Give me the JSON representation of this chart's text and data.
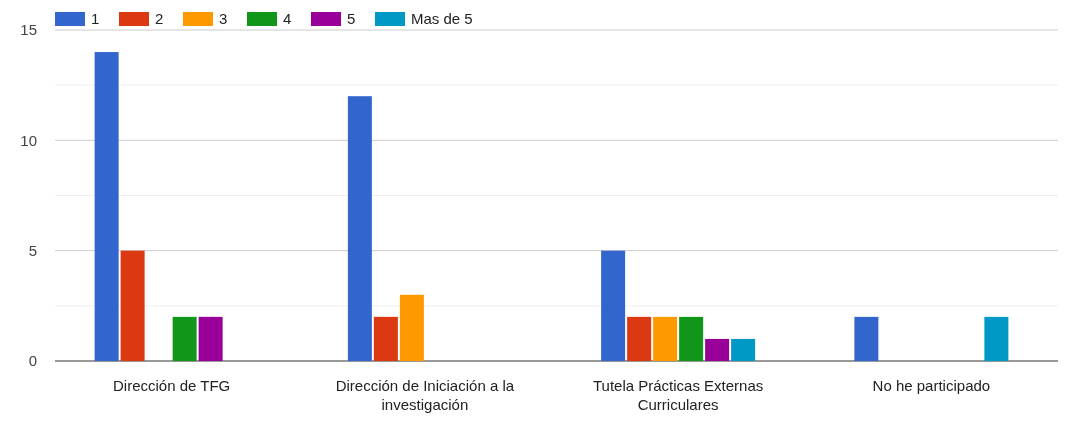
{
  "chart_data": {
    "type": "bar",
    "categories": [
      "Dirección de TFG",
      "Dirección de Iniciación a la investigación",
      "Tutela Prácticas Externas Curriculares",
      "No he participado"
    ],
    "series": [
      {
        "name": "1",
        "color": "#3366cc",
        "values": [
          14,
          12,
          5,
          2
        ]
      },
      {
        "name": "2",
        "color": "#dc3912",
        "values": [
          5,
          2,
          2,
          0
        ]
      },
      {
        "name": "3",
        "color": "#ff9900",
        "values": [
          0,
          3,
          2,
          0
        ]
      },
      {
        "name": "4",
        "color": "#109618",
        "values": [
          2,
          0,
          2,
          0
        ]
      },
      {
        "name": "5",
        "color": "#990099",
        "values": [
          2,
          0,
          1,
          0
        ]
      },
      {
        "name": "Mas de 5",
        "color": "#0099c6",
        "values": [
          0,
          0,
          1,
          2
        ]
      }
    ],
    "ylim": [
      0,
      15
    ],
    "yticks": [
      0,
      {
        "value": 2.5,
        "label": null
      },
      5,
      {
        "value": 7.5,
        "label": null
      },
      10,
      {
        "value": 12.5,
        "label": null
      },
      15
    ],
    "grid": true,
    "legend": "top left"
  }
}
